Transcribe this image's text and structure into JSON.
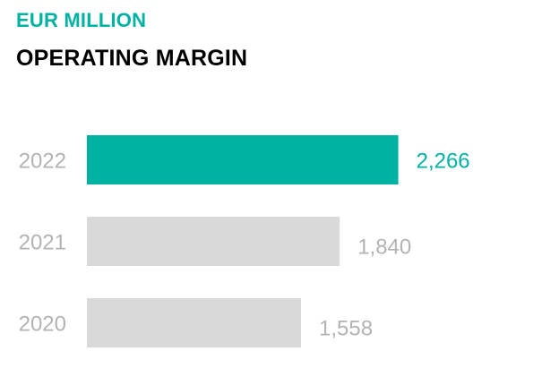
{
  "header": {
    "subtitle": "EUR MILLION",
    "title": "OPERATING MARGIN"
  },
  "colors": {
    "accent": "#00b2a2",
    "muted_bar": "#d9d9d9",
    "muted_text": "#b3b3b3"
  },
  "chart_data": {
    "type": "bar",
    "orientation": "horizontal",
    "title": "OPERATING MARGIN",
    "subtitle": "EUR MILLION",
    "categories": [
      "2022",
      "2021",
      "2020"
    ],
    "values": [
      2266,
      1840,
      1558
    ],
    "value_labels": [
      "2,266",
      "1,840",
      "1,558"
    ],
    "highlight_index": 0,
    "xlim": [
      0,
      2510
    ],
    "grid": false,
    "legend": "none"
  }
}
